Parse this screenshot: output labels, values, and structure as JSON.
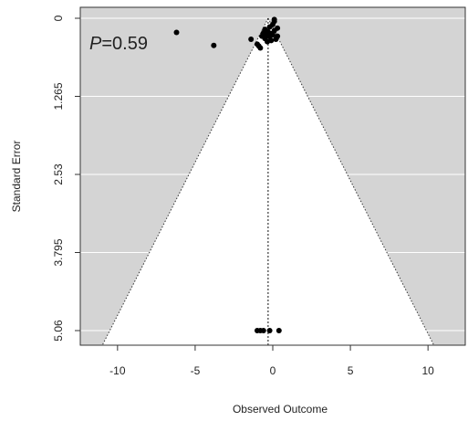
{
  "chart_data": {
    "type": "scatter",
    "subtype": "funnel",
    "xlabel": "Observed Outcome",
    "ylabel": "Standard Error",
    "x_ticks": [
      -10,
      -5,
      0,
      5,
      10
    ],
    "y_ticks": [
      "0",
      "1.265",
      "2.53",
      "3.795",
      "5.06"
    ],
    "xlim": [
      -12.4,
      12.4
    ],
    "ylim": [
      5.06,
      0
    ],
    "y_reversed": true,
    "grid": true,
    "panel_color": "#d4d4d4",
    "funnel_fill": "#ffffff",
    "center": -0.3,
    "funnel_half_width_at_max_se": 10.2,
    "annotation": {
      "prefix": "P",
      "value": "=0.59"
    },
    "points": [
      {
        "x": -6.2,
        "y": 0.23
      },
      {
        "x": -3.8,
        "y": 0.44
      },
      {
        "x": -1.4,
        "y": 0.34
      },
      {
        "x": -1.0,
        "y": 0.42
      },
      {
        "x": -0.9,
        "y": 0.45
      },
      {
        "x": -0.8,
        "y": 0.48
      },
      {
        "x": -0.7,
        "y": 0.29
      },
      {
        "x": -0.6,
        "y": 0.24
      },
      {
        "x": -0.5,
        "y": 0.33
      },
      {
        "x": -0.5,
        "y": 0.18
      },
      {
        "x": -0.4,
        "y": 0.28
      },
      {
        "x": -0.35,
        "y": 0.38
      },
      {
        "x": -0.3,
        "y": 0.22
      },
      {
        "x": -0.2,
        "y": 0.3
      },
      {
        "x": -0.2,
        "y": 0.14
      },
      {
        "x": -0.1,
        "y": 0.25
      },
      {
        "x": -0.1,
        "y": 0.36
      },
      {
        "x": 0.0,
        "y": 0.1
      },
      {
        "x": 0.0,
        "y": 0.27
      },
      {
        "x": 0.1,
        "y": 0.05
      },
      {
        "x": 0.1,
        "y": 0.2
      },
      {
        "x": 0.2,
        "y": 0.34
      },
      {
        "x": 0.3,
        "y": 0.16
      },
      {
        "x": 0.3,
        "y": 0.29
      },
      {
        "x": 0.1,
        "y": 0.02
      },
      {
        "x": -1.0,
        "y": 5.06
      },
      {
        "x": -0.8,
        "y": 5.06
      },
      {
        "x": -0.6,
        "y": 5.06
      },
      {
        "x": -0.2,
        "y": 5.06
      },
      {
        "x": 0.4,
        "y": 5.06
      }
    ]
  }
}
